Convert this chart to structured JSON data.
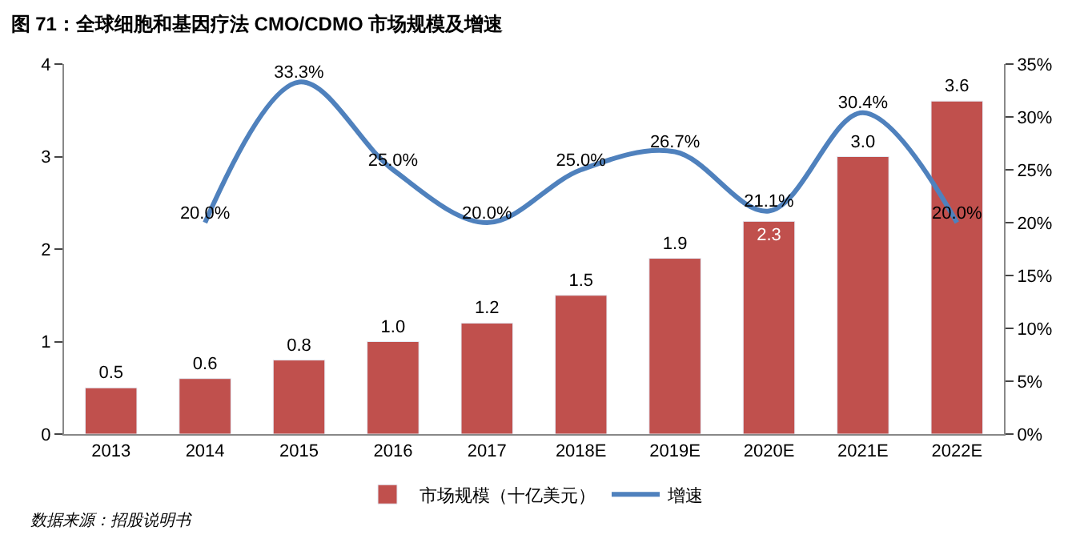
{
  "chart_data": {
    "type": "bar",
    "title": "图 71：全球细胞和基因疗法 CMO/CDMO 市场规模及增速",
    "categories": [
      "2013",
      "2014",
      "2015",
      "2016",
      "2017",
      "2018E",
      "2019E",
      "2020E",
      "2021E",
      "2022E"
    ],
    "series": [
      {
        "name": "市场规模（十亿美元）",
        "color": "#c0504d",
        "values": [
          0.5,
          0.6,
          0.8,
          1.0,
          1.2,
          1.5,
          1.9,
          2.3,
          3.0,
          3.6
        ],
        "value_labels": [
          "0.5",
          "0.6",
          "0.8",
          "1.0",
          "1.2",
          "1.5",
          "1.9",
          "2.3",
          "3.0",
          "3.6"
        ]
      },
      {
        "name": "增速",
        "type": "line",
        "axis": "y2",
        "color": "#4f81bd",
        "values": [
          null,
          20.0,
          33.3,
          25.0,
          20.0,
          25.0,
          26.7,
          21.1,
          30.4,
          20.0
        ],
        "value_labels": [
          null,
          "20.0%",
          "33.3%",
          "25.0%",
          "20.0%",
          "25.0%",
          "26.7%",
          "21.1%",
          "30.4%",
          "20.0%"
        ]
      }
    ],
    "ylim": [
      0,
      4
    ],
    "yticks": [
      0,
      1,
      2,
      3,
      4
    ],
    "y2lim": [
      0,
      35
    ],
    "y2ticks": [
      {
        "value": 0,
        "label": "0%"
      },
      {
        "value": 5,
        "label": "5%"
      },
      {
        "value": 10,
        "label": "10%"
      },
      {
        "value": 15,
        "label": "15%"
      },
      {
        "value": 20,
        "label": "20%"
      },
      {
        "value": 25,
        "label": "25%"
      },
      {
        "value": 30,
        "label": "30%"
      },
      {
        "value": 35,
        "label": "35%"
      }
    ],
    "legend": "bottom",
    "marker": "none",
    "line_style": "solid",
    "annotations": [
      "数据来源：招股说明书"
    ]
  }
}
